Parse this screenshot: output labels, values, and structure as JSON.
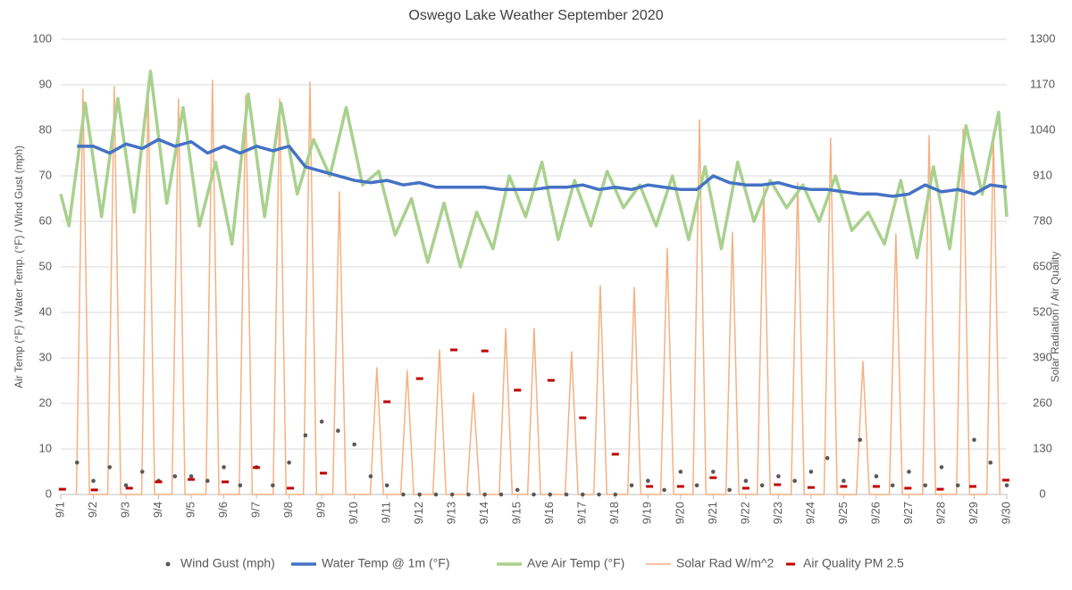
{
  "chart_data": {
    "type": "line",
    "title": "Oswego Lake Weather September 2020",
    "ylabel": "Air Temp (°F) / Water Temp. (°F) / Wind Gust (mph)",
    "y2label": "Solar Radiation / Air Quality",
    "xlim": [
      1,
      30
    ],
    "xticks": [
      {
        "value": 1,
        "label": "9/1"
      },
      {
        "value": 2,
        "label": "9/2"
      },
      {
        "value": 3,
        "label": "9/3"
      },
      {
        "value": 4,
        "label": "9/4"
      },
      {
        "value": 5,
        "label": "9/5"
      },
      {
        "value": 6,
        "label": "9/6"
      },
      {
        "value": 7,
        "label": "9/7"
      },
      {
        "value": 8,
        "label": "9/8"
      },
      {
        "value": 9,
        "label": "9/9"
      },
      {
        "value": 10,
        "label": "9/10"
      },
      {
        "value": 11,
        "label": "9/11"
      },
      {
        "value": 12,
        "label": "9/12"
      },
      {
        "value": 13,
        "label": "9/13"
      },
      {
        "value": 14,
        "label": "9/14"
      },
      {
        "value": 15,
        "label": "9/15"
      },
      {
        "value": 16,
        "label": "9/16"
      },
      {
        "value": 17,
        "label": "9/17"
      },
      {
        "value": 18,
        "label": "9/18"
      },
      {
        "value": 19,
        "label": "9/19"
      },
      {
        "value": 20,
        "label": "9/20"
      },
      {
        "value": 21,
        "label": "9/21"
      },
      {
        "value": 22,
        "label": "9/22"
      },
      {
        "value": 23,
        "label": "9/23"
      },
      {
        "value": 24,
        "label": "9/24"
      },
      {
        "value": 25,
        "label": "9/25"
      },
      {
        "value": 26,
        "label": "9/26"
      },
      {
        "value": 27,
        "label": "9/27"
      },
      {
        "value": 28,
        "label": "9/28"
      },
      {
        "value": 29,
        "label": "9/29"
      },
      {
        "value": 30,
        "label": "9/30"
      }
    ],
    "ylim": [
      0,
      100
    ],
    "yticks": [
      0,
      10,
      20,
      30,
      40,
      50,
      60,
      70,
      80,
      90,
      100
    ],
    "y2lim": [
      0,
      1300
    ],
    "y2ticks": [
      0,
      130,
      260,
      390,
      520,
      650,
      780,
      910,
      1040,
      1170,
      1300
    ],
    "grid": true,
    "legend": "bottom",
    "series": [
      {
        "name": "Wind Gust (mph)",
        "type": "scatter",
        "color": "#595959",
        "x": [
          1.5,
          2,
          2.5,
          3,
          3.5,
          4,
          4.5,
          5,
          5.5,
          6,
          6.5,
          7,
          7.5,
          8,
          8.5,
          9,
          9.5,
          10,
          10.5,
          11,
          11.5,
          12,
          12.5,
          13,
          13.5,
          14,
          14.5,
          15,
          15.5,
          16,
          16.5,
          17,
          17.5,
          18,
          18.5,
          19,
          19.5,
          20,
          20.5,
          21,
          21.5,
          22,
          22.5,
          23,
          23.5,
          24,
          24.5,
          25,
          25.5,
          26,
          26.5,
          27,
          27.5,
          28,
          28.5,
          29,
          29.5,
          30
        ],
        "values": [
          7,
          3,
          6,
          2,
          5,
          3,
          4,
          4,
          3,
          6,
          2,
          6,
          2,
          7,
          13,
          16,
          14,
          11,
          4,
          2,
          0,
          0,
          0,
          0,
          0,
          0,
          0,
          1,
          0,
          0,
          0,
          0,
          0,
          0,
          2,
          3,
          1,
          5,
          2,
          5,
          1,
          3,
          2,
          4,
          3,
          5,
          8,
          3,
          12,
          4,
          2,
          5,
          2,
          6,
          2,
          12,
          7,
          2
        ]
      },
      {
        "name": "Water Temp @ 1m (°F)",
        "type": "line",
        "color": "#4472c4",
        "width": 3.5,
        "x": [
          1.5,
          2,
          2.5,
          3,
          3.5,
          4,
          4.5,
          5,
          5.5,
          6,
          6.5,
          7,
          7.5,
          8,
          8.5,
          9,
          9.5,
          10,
          10.5,
          11,
          11.5,
          12,
          12.5,
          13,
          13.5,
          14,
          14.5,
          15,
          15.5,
          16,
          16.5,
          17,
          17.5,
          18,
          18.5,
          19,
          19.5,
          20,
          20.5,
          21,
          21.5,
          22,
          22.5,
          23,
          23.5,
          24,
          24.5,
          25,
          25.5,
          26,
          26.5,
          27,
          27.5,
          28,
          28.5,
          29,
          29.5,
          30
        ],
        "values": [
          76.5,
          76.5,
          75,
          77,
          76,
          78,
          76.5,
          77.5,
          75,
          76.5,
          75,
          76.5,
          75.5,
          76.5,
          72,
          71,
          70,
          69,
          68.5,
          69,
          68,
          68.5,
          67.5,
          67.5,
          67.5,
          67.5,
          67,
          67,
          67,
          67.5,
          67.5,
          68,
          67,
          67.5,
          67,
          68,
          67.5,
          67,
          67,
          70,
          68.5,
          68,
          68,
          68.5,
          67.5,
          67,
          67,
          66.5,
          66,
          66,
          65.5,
          66,
          68,
          66.5,
          67,
          66,
          68,
          67.5
        ]
      },
      {
        "name": "Ave Air Temp (°F)",
        "type": "line",
        "color": "#a9d18e",
        "width": 3.5,
        "x": [
          1,
          1.25,
          1.75,
          2.25,
          2.75,
          3.25,
          3.75,
          4.25,
          4.75,
          5.25,
          5.75,
          6.25,
          6.75,
          7.25,
          7.75,
          8.25,
          8.75,
          9.25,
          9.75,
          10.25,
          10.75,
          11.25,
          11.75,
          12.25,
          12.75,
          13.25,
          13.75,
          14.25,
          14.75,
          15.25,
          15.75,
          16.25,
          16.75,
          17.25,
          17.75,
          18.25,
          18.75,
          19.25,
          19.75,
          20.25,
          20.75,
          21.25,
          21.75,
          22.25,
          22.75,
          23.25,
          23.75,
          24.25,
          24.75,
          25.25,
          25.75,
          26.25,
          26.75,
          27.25,
          27.75,
          28.25,
          28.75,
          29.25,
          29.75,
          30
        ],
        "values": [
          66,
          59,
          86,
          61,
          87,
          62,
          93,
          64,
          85,
          59,
          73,
          55,
          88,
          61,
          86,
          66,
          78,
          70,
          85,
          68,
          71,
          57,
          65,
          51,
          64,
          50,
          62,
          54,
          70,
          61,
          73,
          56,
          69,
          59,
          71,
          63,
          68,
          59,
          70,
          56,
          72,
          54,
          73,
          60,
          69,
          63,
          68,
          60,
          70,
          58,
          62,
          55,
          69,
          52,
          72,
          54,
          81,
          66,
          84,
          61
        ]
      },
      {
        "name": "Solar Rad W/m^2",
        "type": "line",
        "axis": "y2",
        "color": "#f4b183",
        "width": 1.5,
        "x": [
          1.48,
          1.68,
          1.88,
          2.44,
          2.64,
          2.84,
          3.48,
          3.68,
          3.88,
          4.41,
          4.61,
          4.81,
          5.45,
          5.65,
          5.85,
          6.47,
          6.67,
          6.87,
          7.51,
          7.71,
          7.91,
          8.44,
          8.64,
          8.84,
          9.34,
          9.54,
          9.74,
          10.49,
          10.69,
          10.89,
          11.42,
          11.62,
          11.82,
          12.41,
          12.61,
          12.81,
          13.45,
          13.65,
          13.85,
          14.44,
          14.64,
          14.84,
          15.31,
          15.51,
          15.71,
          16.46,
          16.66,
          16.86,
          17.34,
          17.54,
          17.74,
          18.38,
          18.58,
          18.78,
          19.39,
          19.59,
          19.79,
          20.38,
          20.58,
          20.78,
          21.39,
          21.59,
          21.79,
          22.35,
          22.55,
          22.75,
          23.39,
          23.59,
          23.79,
          24.4,
          24.6,
          24.8,
          25.39,
          25.59,
          25.79,
          26.4,
          26.6,
          26.8,
          27.42,
          27.62,
          27.82,
          28.46,
          28.66,
          28.86,
          29.39,
          29.59,
          29.79
        ],
        "values": [
          0,
          1157,
          0,
          0,
          1165,
          0,
          0,
          1160,
          0,
          0,
          1130,
          0,
          0,
          1183,
          0,
          0,
          1140,
          0,
          0,
          1130,
          0,
          0,
          1178,
          0,
          0,
          864,
          0,
          0,
          362,
          0,
          0,
          354,
          0,
          0,
          413,
          0,
          0,
          290,
          0,
          0,
          474,
          0,
          0,
          474,
          0,
          0,
          408,
          0,
          0,
          596,
          0,
          0,
          591,
          0,
          0,
          703,
          0,
          0,
          1070,
          0,
          0,
          749,
          0,
          0,
          877,
          0,
          0,
          890,
          0,
          0,
          1017,
          0,
          0,
          380,
          0,
          0,
          744,
          0,
          0,
          1025,
          0,
          0,
          1043,
          0,
          0,
          1035,
          0
        ]
      },
      {
        "name": "Air Quality PM 2.5",
        "type": "dash",
        "axis": "y2",
        "color": "#c00000",
        "x": [
          1.05,
          2.03,
          3.1,
          4,
          5,
          6.04,
          7,
          8.04,
          9.05,
          11,
          12,
          13.05,
          14,
          15,
          16.03,
          17,
          18,
          19.05,
          20,
          21,
          22,
          22.97,
          24,
          25,
          26,
          26.97,
          27.96,
          28.96,
          29.97
        ],
        "values": [
          15,
          13,
          18,
          36,
          43,
          36,
          77,
          18,
          61,
          265,
          331,
          413,
          410,
          298,
          326,
          219,
          115,
          23,
          23,
          48,
          18,
          28,
          20,
          23,
          23,
          18,
          15,
          23,
          41
        ]
      }
    ]
  }
}
